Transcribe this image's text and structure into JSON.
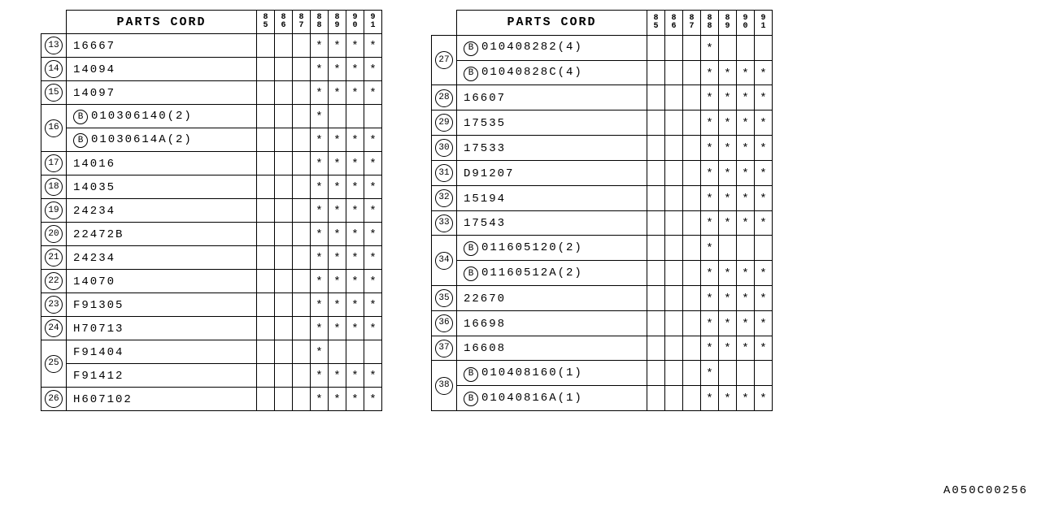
{
  "title": "PARTS CORD",
  "years": [
    "85",
    "86",
    "87",
    "88",
    "89",
    "90",
    "91"
  ],
  "asterisk": "*",
  "b_prefix": "B",
  "footer": "A050C00256",
  "tableLeft": [
    {
      "idx": "13",
      "parts": [
        {
          "code": "16667",
          "marks": [
            0,
            0,
            0,
            1,
            1,
            1,
            1
          ]
        }
      ]
    },
    {
      "idx": "14",
      "parts": [
        {
          "code": "14094",
          "marks": [
            0,
            0,
            0,
            1,
            1,
            1,
            1
          ]
        }
      ]
    },
    {
      "idx": "15",
      "parts": [
        {
          "code": "14097",
          "marks": [
            0,
            0,
            0,
            1,
            1,
            1,
            1
          ]
        }
      ]
    },
    {
      "idx": "16",
      "parts": [
        {
          "b": true,
          "code": "010306140(2)",
          "marks": [
            0,
            0,
            0,
            1,
            0,
            0,
            0
          ]
        },
        {
          "b": true,
          "code": "01030614A(2)",
          "marks": [
            0,
            0,
            0,
            1,
            1,
            1,
            1
          ]
        }
      ]
    },
    {
      "idx": "17",
      "parts": [
        {
          "code": "14016",
          "marks": [
            0,
            0,
            0,
            1,
            1,
            1,
            1
          ]
        }
      ]
    },
    {
      "idx": "18",
      "parts": [
        {
          "code": "14035",
          "marks": [
            0,
            0,
            0,
            1,
            1,
            1,
            1
          ]
        }
      ]
    },
    {
      "idx": "19",
      "parts": [
        {
          "code": "24234",
          "marks": [
            0,
            0,
            0,
            1,
            1,
            1,
            1
          ]
        }
      ]
    },
    {
      "idx": "20",
      "parts": [
        {
          "code": "22472B",
          "marks": [
            0,
            0,
            0,
            1,
            1,
            1,
            1
          ]
        }
      ]
    },
    {
      "idx": "21",
      "parts": [
        {
          "code": "24234",
          "marks": [
            0,
            0,
            0,
            1,
            1,
            1,
            1
          ]
        }
      ]
    },
    {
      "idx": "22",
      "parts": [
        {
          "code": "14070",
          "marks": [
            0,
            0,
            0,
            1,
            1,
            1,
            1
          ]
        }
      ]
    },
    {
      "idx": "23",
      "parts": [
        {
          "code": "F91305",
          "marks": [
            0,
            0,
            0,
            1,
            1,
            1,
            1
          ]
        }
      ]
    },
    {
      "idx": "24",
      "parts": [
        {
          "code": "H70713",
          "marks": [
            0,
            0,
            0,
            1,
            1,
            1,
            1
          ]
        }
      ]
    },
    {
      "idx": "25",
      "parts": [
        {
          "code": "F91404",
          "marks": [
            0,
            0,
            0,
            1,
            0,
            0,
            0
          ]
        },
        {
          "code": "F91412",
          "marks": [
            0,
            0,
            0,
            1,
            1,
            1,
            1
          ]
        }
      ]
    },
    {
      "idx": "26",
      "parts": [
        {
          "code": "H607102",
          "marks": [
            0,
            0,
            0,
            1,
            1,
            1,
            1
          ]
        }
      ]
    }
  ],
  "tableRight": [
    {
      "idx": "27",
      "parts": [
        {
          "b": true,
          "code": "010408282(4)",
          "marks": [
            0,
            0,
            0,
            1,
            0,
            0,
            0
          ]
        },
        {
          "b": true,
          "code": "01040828C(4)",
          "marks": [
            0,
            0,
            0,
            1,
            1,
            1,
            1
          ]
        }
      ]
    },
    {
      "idx": "28",
      "parts": [
        {
          "code": "16607",
          "marks": [
            0,
            0,
            0,
            1,
            1,
            1,
            1
          ]
        }
      ]
    },
    {
      "idx": "29",
      "parts": [
        {
          "code": "17535",
          "marks": [
            0,
            0,
            0,
            1,
            1,
            1,
            1
          ]
        }
      ]
    },
    {
      "idx": "30",
      "parts": [
        {
          "code": "17533",
          "marks": [
            0,
            0,
            0,
            1,
            1,
            1,
            1
          ]
        }
      ]
    },
    {
      "idx": "31",
      "parts": [
        {
          "code": "D91207",
          "marks": [
            0,
            0,
            0,
            1,
            1,
            1,
            1
          ]
        }
      ]
    },
    {
      "idx": "32",
      "parts": [
        {
          "code": "15194",
          "marks": [
            0,
            0,
            0,
            1,
            1,
            1,
            1
          ]
        }
      ]
    },
    {
      "idx": "33",
      "parts": [
        {
          "code": "17543",
          "marks": [
            0,
            0,
            0,
            1,
            1,
            1,
            1
          ]
        }
      ]
    },
    {
      "idx": "34",
      "parts": [
        {
          "b": true,
          "code": "011605120(2)",
          "marks": [
            0,
            0,
            0,
            1,
            0,
            0,
            0
          ]
        },
        {
          "b": true,
          "code": "01160512A(2)",
          "marks": [
            0,
            0,
            0,
            1,
            1,
            1,
            1
          ]
        }
      ]
    },
    {
      "idx": "35",
      "parts": [
        {
          "code": "22670",
          "marks": [
            0,
            0,
            0,
            1,
            1,
            1,
            1
          ]
        }
      ]
    },
    {
      "idx": "36",
      "parts": [
        {
          "code": "16698",
          "marks": [
            0,
            0,
            0,
            1,
            1,
            1,
            1
          ]
        }
      ]
    },
    {
      "idx": "37",
      "parts": [
        {
          "code": "16608",
          "marks": [
            0,
            0,
            0,
            1,
            1,
            1,
            1
          ]
        }
      ]
    },
    {
      "idx": "38",
      "parts": [
        {
          "b": true,
          "code": "010408160(1)",
          "marks": [
            0,
            0,
            0,
            1,
            0,
            0,
            0
          ]
        },
        {
          "b": true,
          "code": "01040816A(1)",
          "marks": [
            0,
            0,
            0,
            1,
            1,
            1,
            1
          ]
        }
      ]
    }
  ]
}
